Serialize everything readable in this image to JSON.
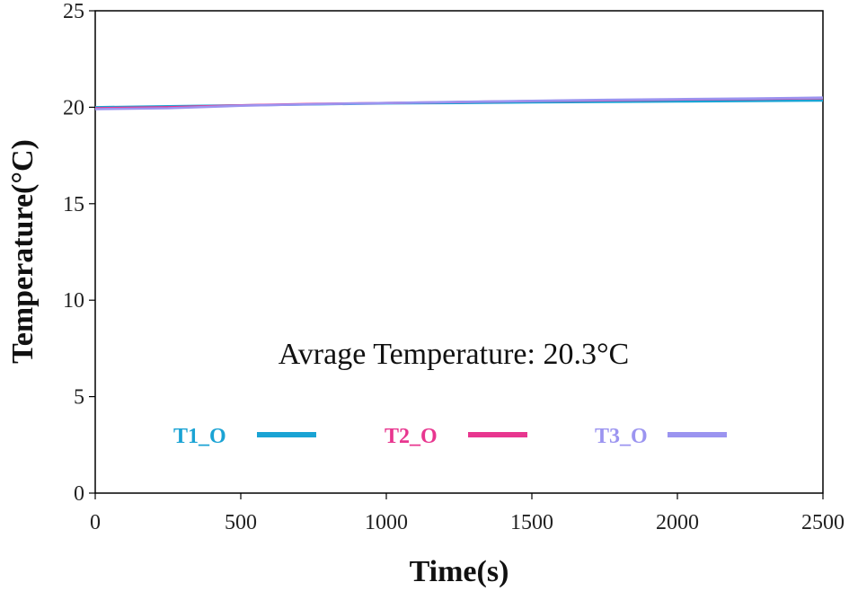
{
  "chart_data": {
    "type": "line",
    "xlabel": "Time(s)",
    "ylabel": "Temperature(°C)",
    "xlim": [
      0,
      2500
    ],
    "ylim": [
      0,
      25
    ],
    "xticks": [
      "0",
      "500",
      "1000",
      "1500",
      "2000",
      "2500"
    ],
    "yticks": [
      "0",
      "5",
      "10",
      "15",
      "20",
      "25"
    ],
    "annotation": "Avrage Temperature: 20.3°C",
    "grid": false,
    "legend_position": "inside-lower-center",
    "series": [
      {
        "name": "T1_O",
        "color": "#1aa3d4",
        "x": [
          0,
          250,
          500,
          750,
          1000,
          1250,
          1500,
          1750,
          2000,
          2250,
          2500
        ],
        "y": [
          20.0,
          20.05,
          20.1,
          20.15,
          20.2,
          20.22,
          20.25,
          20.28,
          20.3,
          20.32,
          20.35
        ]
      },
      {
        "name": "T2_O",
        "color": "#e8368f",
        "x": [
          0,
          250,
          500,
          750,
          1000,
          1250,
          1500,
          1750,
          2000,
          2250,
          2500
        ],
        "y": [
          19.95,
          20.0,
          20.1,
          20.17,
          20.22,
          20.27,
          20.32,
          20.36,
          20.4,
          20.43,
          20.47
        ]
      },
      {
        "name": "T3_O",
        "color": "#9b94f0",
        "x": [
          0,
          250,
          500,
          750,
          1000,
          1250,
          1500,
          1750,
          2000,
          2250,
          2500
        ],
        "y": [
          19.9,
          19.95,
          20.08,
          20.16,
          20.22,
          20.28,
          20.33,
          20.38,
          20.42,
          20.45,
          20.5
        ]
      }
    ]
  }
}
